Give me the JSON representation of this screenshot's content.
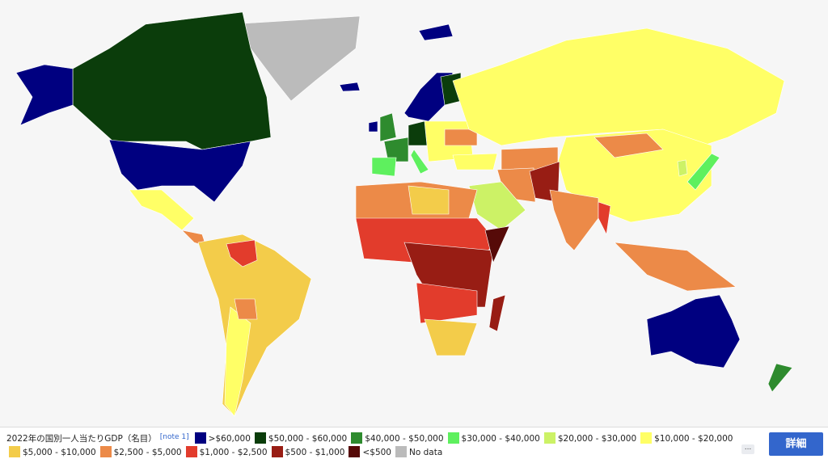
{
  "caption": {
    "title": "2022年の国別一人当たりGDP（名目）",
    "note": "[note 1]"
  },
  "legend": {
    "items": [
      {
        "label": ">$60,000",
        "color": "#000080"
      },
      {
        "label": "$50,000 - $60,000",
        "color": "#0b3d0b"
      },
      {
        "label": "$40,000 - $50,000",
        "color": "#2e8b2e"
      },
      {
        "label": "$30,000 - $40,000",
        "color": "#5ef05e"
      },
      {
        "label": "$20,000 - $30,000",
        "color": "#ccf266"
      },
      {
        "label": "$10,000 - $20,000",
        "color": "#ffff66"
      },
      {
        "label": "$5,000 - $10,000",
        "color": "#f3cc4a"
      },
      {
        "label": "$2,500 - $5,000",
        "color": "#ec8a48"
      },
      {
        "label": "$1,000 - $2,500",
        "color": "#e23c2c"
      },
      {
        "label": "$500 - $1,000",
        "color": "#981d14"
      },
      {
        "label": "<$500",
        "color": "#560a08"
      },
      {
        "label": "No data",
        "color": "#bbbbbb"
      }
    ]
  },
  "controls": {
    "more": "...",
    "details": "詳細"
  }
}
